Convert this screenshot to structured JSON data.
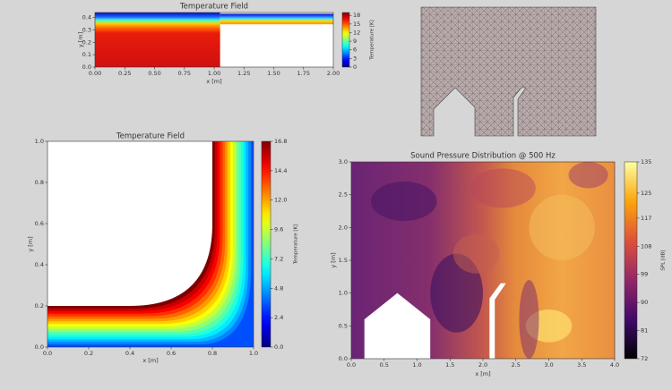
{
  "chart_data": [
    {
      "type": "heatmap",
      "title": "Temperature Field",
      "xlabel": "x [m]",
      "ylabel": "y [m]",
      "xlim": [
        0,
        2
      ],
      "ylim": [
        0,
        0.44
      ],
      "xticks": [
        {
          "value": 0,
          "label": "0.00"
        },
        0.25,
        {
          "value": 0.5,
          "label": "0.50"
        },
        0.75,
        {
          "value": 1,
          "label": "1.00"
        },
        1.25,
        {
          "value": 1.5,
          "label": "1.50"
        },
        1.75,
        {
          "value": 2,
          "label": "2.00"
        }
      ],
      "yticks": [
        {
          "value": 0,
          "label": "0.0"
        },
        0.1,
        0.2,
        0.3,
        0.4
      ],
      "colormap": "jet",
      "colorbar_label": "Temperature [K]",
      "clim": [
        0,
        19
      ],
      "cticks": [
        0,
        3,
        6,
        9,
        12,
        15,
        18
      ]
    },
    {
      "type": "heatmap",
      "title": "Temperature Field",
      "xlabel": "x [m]",
      "ylabel": "y [m]",
      "xlim": [
        0,
        1
      ],
      "ylim": [
        0,
        1
      ],
      "xticks": [
        {
          "value": 0,
          "label": "0.0"
        },
        0.2,
        0.4,
        0.6,
        0.8,
        {
          "value": 1,
          "label": "1.0"
        }
      ],
      "yticks": [
        {
          "value": 0,
          "label": "0.0"
        },
        0.2,
        0.4,
        0.6,
        0.8,
        {
          "value": 1,
          "label": "1.0"
        }
      ],
      "colormap": "jet",
      "colorbar_label": "Temperature [K]",
      "clim": [
        0,
        16.8
      ],
      "cticks": [
        {
          "value": 0,
          "label": "0.0"
        },
        2.4,
        4.8,
        7.2,
        9.6,
        {
          "value": 12,
          "label": "12.0"
        },
        14.4,
        16.8
      ]
    },
    {
      "type": "heatmap",
      "title": "Sound Pressure Distribution @ 500 Hz",
      "xlabel": "x [m]",
      "ylabel": "y [m]",
      "xlim": [
        0,
        4
      ],
      "ylim": [
        0,
        3
      ],
      "xticks": [
        {
          "value": 0,
          "label": "0.0"
        },
        0.5,
        {
          "value": 1,
          "label": "1.0"
        },
        1.5,
        {
          "value": 2,
          "label": "2.0"
        },
        2.5,
        {
          "value": 3,
          "label": "3.0"
        },
        3.5,
        {
          "value": 4,
          "label": "4.0"
        }
      ],
      "yticks": [
        {
          "value": 0,
          "label": "0.0"
        },
        0.5,
        {
          "value": 1,
          "label": "1.0"
        },
        1.5,
        {
          "value": 2,
          "label": "2.0"
        },
        2.5,
        {
          "value": 3,
          "label": "3.0"
        }
      ],
      "colormap": "inferno",
      "colorbar_label": "SPL [dB]",
      "clim": [
        72,
        135
      ],
      "cticks": [
        72,
        81,
        90,
        99,
        108,
        117,
        125,
        135
      ]
    }
  ]
}
